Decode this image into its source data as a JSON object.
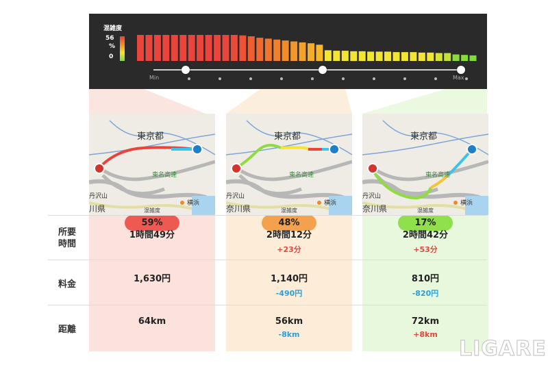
{
  "panel": {
    "title": "混雑度",
    "scale_top": "56",
    "scale_unit": "%",
    "scale_bottom": "0",
    "slider_min": "Min",
    "slider_max": "Max",
    "bar_values": [
      56,
      56,
      56,
      56,
      56,
      56,
      56,
      56,
      56,
      56,
      56,
      56,
      55,
      53,
      50,
      48,
      46,
      44,
      42,
      40,
      38,
      35,
      23,
      22,
      22,
      21,
      21,
      20,
      20,
      20,
      19,
      19,
      19,
      18,
      18,
      17,
      17,
      14,
      13,
      12
    ],
    "bar_colors": [
      "#e9453c",
      "#e9453c",
      "#e9453c",
      "#e9453c",
      "#e9453c",
      "#e9453c",
      "#e9453c",
      "#e9453c",
      "#e9453c",
      "#e9453c",
      "#e9453c",
      "#ea4a3a",
      "#eb5236",
      "#ed5f33",
      "#ef6a31",
      "#f0752f",
      "#f1802d",
      "#f28c2b",
      "#f3962a",
      "#f4a228",
      "#f4ad28",
      "#f4b828",
      "#f2e534",
      "#f2e534",
      "#f2e534",
      "#f2e534",
      "#f2e534",
      "#f2e534",
      "#f2e534",
      "#f2e534",
      "#f2e534",
      "#f2e534",
      "#f2e534",
      "#f2e534",
      "#f2e534",
      "#d8e435",
      "#c2e336",
      "#8bdc3b",
      "#86dc3b",
      "#80dc3b"
    ],
    "slider_positions_pct": [
      10.5,
      55.0,
      100.0
    ]
  },
  "columns": [
    {
      "congestion_label": "混雑度",
      "congestion": "59%",
      "pill_color": "#ee5a52",
      "time": "1時間49分",
      "time_diff": "",
      "fee": "1,630円",
      "fee_diff": "",
      "distance": "64km",
      "distance_diff": ""
    },
    {
      "congestion_label": "混雑度",
      "congestion": "48%",
      "pill_color": "#f4a14e",
      "time": "2時間12分",
      "time_diff": "+23分",
      "fee": "1,140円",
      "fee_diff": "-490円",
      "distance": "56km",
      "distance_diff": "-8km"
    },
    {
      "congestion_label": "混雑度",
      "congestion": "17%",
      "pill_color": "#8fe04c",
      "time": "2時間42分",
      "time_diff": "+53分",
      "fee": "810円",
      "fee_diff": "-820円",
      "distance": "72km",
      "distance_diff": "+8km"
    }
  ],
  "map_labels": {
    "tokyo": "東京都",
    "tomei": "東名高速",
    "tanzawa": "丹沢山",
    "yokohama": "横浜",
    "kanagawa_c1": "川県",
    "kanagawa_c2": "奈川県",
    "kanagawa_c3": "奈川県"
  },
  "rows": {
    "time_label": "所要時間",
    "time_label_1": "所要",
    "time_label_2": "時間",
    "fee_label": "料金",
    "distance_label": "距離"
  },
  "logo": "LIGARE",
  "colors": {
    "red": "#e2463c",
    "blue": "#2a9fdc",
    "col1_bg": "#fbe2dd",
    "col2_bg": "#fcecd8",
    "col3_bg": "#e8f8dc"
  }
}
